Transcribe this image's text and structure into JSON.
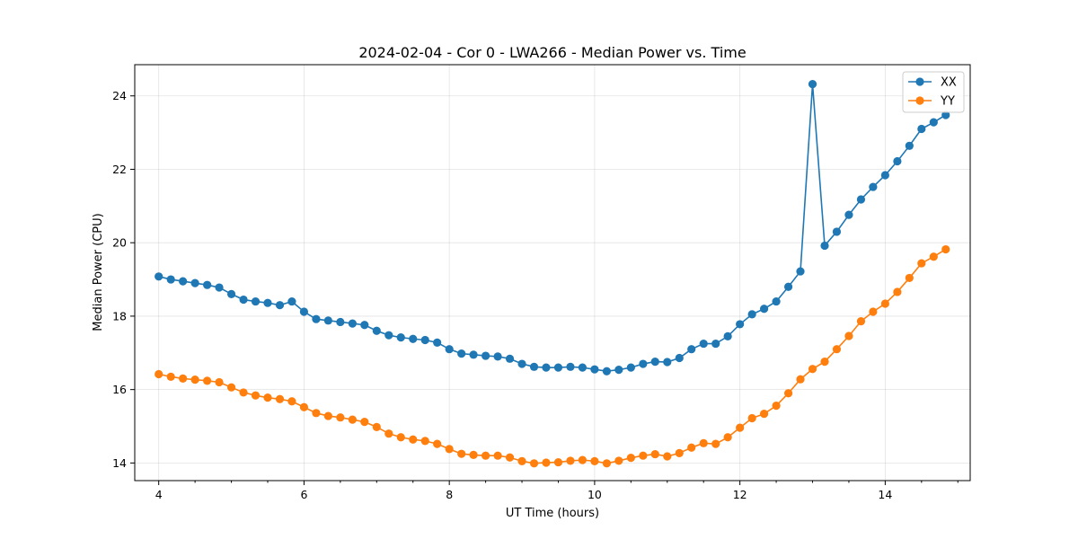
{
  "chart_data": {
    "type": "line",
    "title": "2024-02-04 - Cor 0 - LWA266 - Median Power vs. Time",
    "xlabel": "UT Time (hours)",
    "ylabel": "Median Power (CPU)",
    "xlim": [
      3.67,
      15.17
    ],
    "ylim": [
      13.52,
      24.85
    ],
    "xticks": [
      4,
      6,
      8,
      10,
      12,
      14
    ],
    "yticks": [
      14,
      16,
      18,
      20,
      22,
      24
    ],
    "grid": true,
    "legend_position": "top-right",
    "x": [
      4.0,
      4.167,
      4.333,
      4.5,
      4.667,
      4.833,
      5.0,
      5.167,
      5.333,
      5.5,
      5.667,
      5.833,
      6.0,
      6.167,
      6.333,
      6.5,
      6.667,
      6.833,
      7.0,
      7.167,
      7.333,
      7.5,
      7.667,
      7.833,
      8.0,
      8.167,
      8.333,
      8.5,
      8.667,
      8.833,
      9.0,
      9.167,
      9.333,
      9.5,
      9.667,
      9.833,
      10.0,
      10.167,
      10.333,
      10.5,
      10.667,
      10.833,
      11.0,
      11.167,
      11.333,
      11.5,
      11.667,
      11.833,
      12.0,
      12.167,
      12.333,
      12.5,
      12.667,
      12.833,
      13.0,
      13.167,
      13.333,
      13.5,
      13.667,
      13.833,
      14.0,
      14.167,
      14.333,
      14.5,
      14.667,
      14.833
    ],
    "series": [
      {
        "name": "XX",
        "color": "#1f77b4",
        "values": [
          19.08,
          19.0,
          18.95,
          18.9,
          18.85,
          18.78,
          18.6,
          18.45,
          18.4,
          18.36,
          18.3,
          18.4,
          18.12,
          17.92,
          17.88,
          17.84,
          17.8,
          17.76,
          17.6,
          17.48,
          17.42,
          17.38,
          17.35,
          17.28,
          17.1,
          16.98,
          16.95,
          16.92,
          16.9,
          16.84,
          16.7,
          16.62,
          16.6,
          16.6,
          16.62,
          16.6,
          16.55,
          16.5,
          16.54,
          16.6,
          16.7,
          16.76,
          16.75,
          16.86,
          17.1,
          17.25,
          17.25,
          17.45,
          17.78,
          18.05,
          18.2,
          18.4,
          18.8,
          19.22,
          24.32,
          19.92,
          20.3,
          20.76,
          21.18,
          21.52,
          21.84,
          22.22,
          22.64,
          23.1,
          23.28,
          23.48
        ]
      },
      {
        "name": "YY",
        "color": "#ff7f0e",
        "values": [
          16.42,
          16.35,
          16.3,
          16.27,
          16.24,
          16.2,
          16.06,
          15.92,
          15.84,
          15.78,
          15.74,
          15.68,
          15.52,
          15.36,
          15.28,
          15.24,
          15.18,
          15.12,
          14.98,
          14.8,
          14.7,
          14.64,
          14.6,
          14.52,
          14.38,
          14.25,
          14.22,
          14.2,
          14.2,
          14.15,
          14.05,
          13.99,
          14.01,
          14.02,
          14.06,
          14.08,
          14.05,
          13.99,
          14.06,
          14.14,
          14.2,
          14.24,
          14.18,
          14.27,
          14.42,
          14.54,
          14.52,
          14.7,
          14.96,
          15.22,
          15.34,
          15.56,
          15.9,
          16.28,
          16.56,
          16.76,
          17.1,
          17.46,
          17.86,
          18.12,
          18.34,
          18.66,
          19.04,
          19.44,
          19.62,
          19.82
        ]
      }
    ]
  }
}
